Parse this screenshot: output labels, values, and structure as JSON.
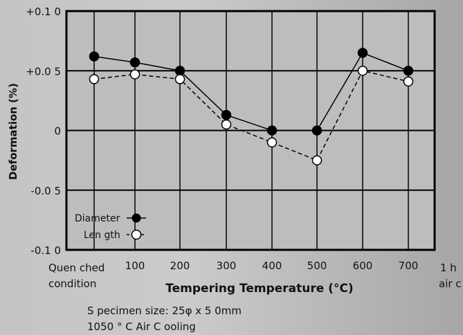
{
  "chart_data": {
    "type": "line",
    "title": "",
    "xlabel": "Tempering Temperature (°C)",
    "ylabel": "Deformation (%)",
    "categories": [
      "Quen ched\ncondition",
      "100",
      "200",
      "300",
      "400",
      "500",
      "600",
      "700"
    ],
    "ylim": [
      -0.1,
      0.1
    ],
    "yticks": [
      {
        "value": 0.1,
        "label": "+0.1 0"
      },
      {
        "value": 0.05,
        "label": "+0.0 5"
      },
      {
        "value": 0.0,
        "label": "0"
      },
      {
        "value": -0.05,
        "label": "-0.0 5"
      },
      {
        "value": -0.1,
        "label": "-0.1 0"
      }
    ],
    "grid": true,
    "legend_position": "bottom-left",
    "series": [
      {
        "name": "Diameter",
        "marker": "filled-circle",
        "line": "solid",
        "values": [
          0.062,
          0.057,
          0.05,
          0.013,
          0.0,
          0.0,
          0.065,
          0.05
        ]
      },
      {
        "name": "Len gth",
        "marker": "open-circle",
        "line": "dashed",
        "values": [
          0.043,
          0.047,
          0.043,
          0.005,
          -0.01,
          -0.025,
          0.05,
          0.041
        ]
      }
    ],
    "annotations": [
      {
        "text": "1 h"
      },
      {
        "text": "air c"
      }
    ],
    "notes": [
      "S pecimen size:    25φ x 5 0mm",
      "1050 ° C   Air C ooling"
    ]
  }
}
